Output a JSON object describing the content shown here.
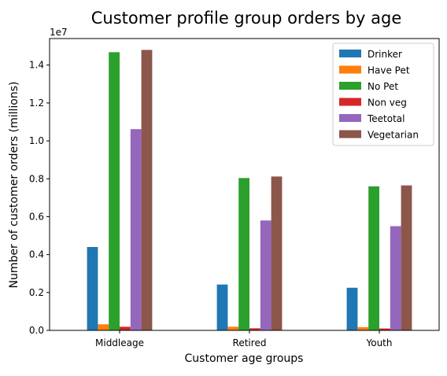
{
  "chart_data": {
    "type": "bar",
    "title": "Customer profile group orders by age",
    "xlabel": "Customer age groups",
    "ylabel": "Number of customer orders (millions)",
    "y_scale_note": "1e7",
    "categories": [
      "Middleage",
      "Retired",
      "Youth"
    ],
    "ylim": [
      0,
      15400000
    ],
    "yticks": [
      0,
      2000000,
      4000000,
      6000000,
      8000000,
      10000000,
      12000000,
      14000000
    ],
    "ytick_labels": [
      "0.0",
      "0.2",
      "0.4",
      "0.6",
      "0.8",
      "1.0",
      "1.2",
      "1.4"
    ],
    "legend_position": "top-right",
    "grid": false,
    "series": [
      {
        "name": "Drinker",
        "color": "#1f77b4",
        "values": [
          4400000,
          2420000,
          2250000
        ]
      },
      {
        "name": "Have Pet",
        "color": "#ff7f0e",
        "values": [
          320000,
          190000,
          170000
        ]
      },
      {
        "name": "No Pet",
        "color": "#2ca02c",
        "values": [
          14680000,
          8040000,
          7600000
        ]
      },
      {
        "name": "Non veg",
        "color": "#d62728",
        "values": [
          190000,
          110000,
          100000
        ]
      },
      {
        "name": "Teetotal",
        "color": "#9467bd",
        "values": [
          10620000,
          5800000,
          5500000
        ]
      },
      {
        "name": "Vegetarian",
        "color": "#8c564b",
        "values": [
          14800000,
          8120000,
          7650000
        ]
      }
    ]
  }
}
